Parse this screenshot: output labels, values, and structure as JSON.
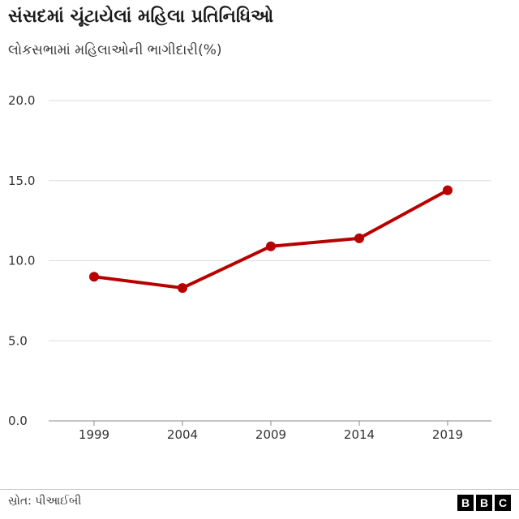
{
  "chart_data": {
    "type": "line",
    "title": "સંસદમાં ચૂંટાયેલાં મહિલા પ્રતિનિધિઓ",
    "subtitle": "લોકસભામાં મહિલાઓની ભાગીદારી(%)",
    "x": [
      "1999",
      "2004",
      "2009",
      "2014",
      "2019"
    ],
    "series": [
      {
        "values": [
          9.0,
          8.3,
          10.9,
          11.4,
          14.4
        ]
      }
    ],
    "ylim": [
      0,
      20
    ],
    "yticks": [
      "0.0",
      "5.0",
      "10.0",
      "15.0",
      "20.0"
    ],
    "grid": true,
    "line_color": "#b80000"
  },
  "footer": {
    "source": "સ્રોત: પીઆઈબી",
    "logo": [
      "B",
      "B",
      "C"
    ]
  }
}
